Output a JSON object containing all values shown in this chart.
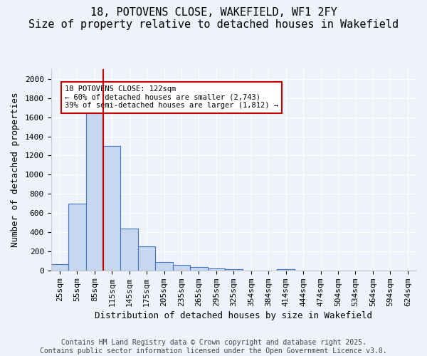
{
  "title_line1": "18, POTOVENS CLOSE, WAKEFIELD, WF1 2FY",
  "title_line2": "Size of property relative to detached houses in Wakefield",
  "xlabel": "Distribution of detached houses by size in Wakefield",
  "ylabel": "Number of detached properties",
  "bar_values": [
    65,
    700,
    1650,
    1300,
    440,
    255,
    90,
    55,
    35,
    20,
    10,
    0,
    0,
    10,
    0,
    0,
    0,
    0,
    0,
    0,
    0
  ],
  "categories": [
    "25sqm",
    "55sqm",
    "85sqm",
    "115sqm",
    "145sqm",
    "175sqm",
    "205sqm",
    "235sqm",
    "265sqm",
    "295sqm",
    "325sqm",
    "354sqm",
    "384sqm",
    "414sqm",
    "444sqm",
    "474sqm",
    "504sqm",
    "534sqm",
    "564sqm",
    "594sqm",
    "624sqm"
  ],
  "bar_color": "#c5d8f0",
  "bar_edge_color": "#4472c4",
  "bar_width": 1.0,
  "vertical_line_color": "#cc0000",
  "annotation_text": "18 POTOVENS CLOSE: 122sqm\n← 60% of detached houses are smaller (2,743)\n39% of semi-detached houses are larger (1,812) →",
  "annotation_box_color": "#cc0000",
  "annotation_box_facecolor": "white",
  "ylim": [
    0,
    2100
  ],
  "yticks": [
    0,
    200,
    400,
    600,
    800,
    1000,
    1200,
    1400,
    1600,
    1800,
    2000
  ],
  "footer_line1": "Contains HM Land Registry data © Crown copyright and database right 2025.",
  "footer_line2": "Contains public sector information licensed under the Open Government Licence v3.0.",
  "background_color": "#eef2fa",
  "grid_color": "#ffffff",
  "title_fontsize": 11,
  "axis_label_fontsize": 9,
  "tick_fontsize": 8,
  "footer_fontsize": 7
}
